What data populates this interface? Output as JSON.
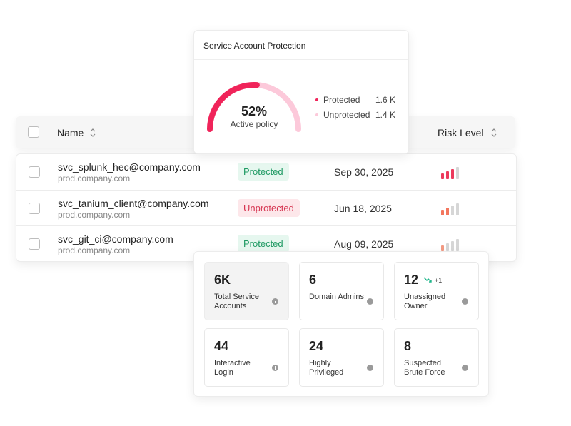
{
  "gauge_card": {
    "title": "Service Account Protection",
    "value": 52,
    "value_label": "52%",
    "caption": "Active policy",
    "legend": [
      {
        "name": "Protected",
        "value": "1.6 K",
        "color": "#f0245a"
      },
      {
        "name": "Unprotected",
        "value": "1.4 K",
        "color": "#fcc9da"
      }
    ]
  },
  "table": {
    "columns": [
      "Name",
      "Risk Level"
    ],
    "risk_max": 4,
    "rows": [
      {
        "name": "svc_splunk_hec@company.com",
        "domain": "prod.company.com",
        "status": "Protected",
        "date": "Sep 30, 2025",
        "risk": 3,
        "risk_color": "#ec3a5c"
      },
      {
        "name": "svc_tanium_client@company.com",
        "domain": "prod.company.com",
        "status": "Unprotected",
        "date": "Jun 18, 2025",
        "risk": 2,
        "risk_color": "#f3775e"
      },
      {
        "name": "svc_git_ci@company.com",
        "domain": "prod.company.com",
        "status": "Protected",
        "date": "Aug 09, 2025",
        "risk": 1,
        "risk_color": "#f39a83"
      }
    ]
  },
  "stats": [
    {
      "value": "6K",
      "label": "Total Service Accounts"
    },
    {
      "value": "6",
      "label": "Domain Admins"
    },
    {
      "value": "12",
      "label": "Unassigned Owner",
      "trend": "+1"
    },
    {
      "value": "44",
      "label": "Interactive Login"
    },
    {
      "value": "24",
      "label": "Highly Privileged"
    },
    {
      "value": "8",
      "label": "Suspected Brute Force"
    }
  ]
}
